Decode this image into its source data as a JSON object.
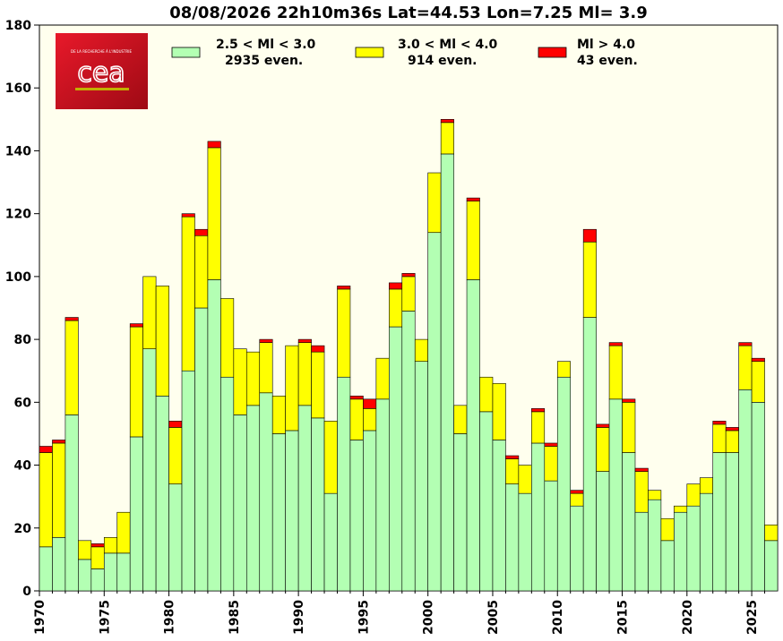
{
  "chart_data": {
    "type": "bar",
    "stacked": true,
    "title": "08/08/2026 22h10m36s Lat=44.53 Lon=7.25 Ml= 3.9",
    "xlabel": "",
    "ylabel": "",
    "ylim": [
      0,
      180
    ],
    "yticks": [
      0,
      20,
      40,
      60,
      80,
      100,
      120,
      140,
      160,
      180
    ],
    "xticks": [
      1970,
      1975,
      1980,
      1985,
      1990,
      1995,
      2000,
      2005,
      2010,
      2015,
      2020,
      2025
    ],
    "grid": false,
    "background": "#ffffee",
    "legend_position": "top",
    "years": [
      1970,
      1971,
      1972,
      1973,
      1974,
      1975,
      1976,
      1977,
      1978,
      1979,
      1980,
      1981,
      1982,
      1983,
      1984,
      1985,
      1986,
      1987,
      1988,
      1989,
      1990,
      1991,
      1992,
      1993,
      1994,
      1995,
      1996,
      1997,
      1998,
      1999,
      2000,
      2001,
      2002,
      2003,
      2004,
      2005,
      2006,
      2007,
      2008,
      2009,
      2010,
      2011,
      2012,
      2013,
      2014,
      2015,
      2016,
      2017,
      2018,
      2019,
      2020,
      2021,
      2022,
      2023,
      2024,
      2025,
      2026
    ],
    "series": [
      {
        "name": "2.5 < Ml < 3.0",
        "legend_line1": "2.5 < Ml <  3.0",
        "legend_line2": "2935 even.",
        "color": "#b3ffb3",
        "values": [
          14,
          17,
          56,
          10,
          7,
          12,
          12,
          49,
          77,
          62,
          34,
          70,
          90,
          99,
          68,
          56,
          59,
          63,
          50,
          51,
          59,
          55,
          31,
          68,
          48,
          51,
          61,
          84,
          89,
          73,
          114,
          139,
          50,
          99,
          57,
          48,
          34,
          31,
          47,
          35,
          68,
          27,
          87,
          38,
          61,
          44,
          25,
          29,
          16,
          25,
          27,
          31,
          44,
          44,
          64,
          60,
          16
        ]
      },
      {
        "name": "3.0 < Ml < 4.0",
        "legend_line1": "3.0 < Ml <  4.0",
        "legend_line2": "914 even.",
        "color": "#ffff00",
        "values": [
          30,
          30,
          30,
          6,
          7,
          5,
          13,
          35,
          23,
          35,
          18,
          49,
          23,
          42,
          25,
          21,
          17,
          16,
          12,
          27,
          20,
          21,
          23,
          28,
          13,
          7,
          13,
          12,
          11,
          7,
          19,
          10,
          9,
          25,
          11,
          18,
          8,
          9,
          10,
          11,
          5,
          4,
          24,
          14,
          17,
          16,
          13,
          3,
          7,
          2,
          7,
          5,
          9,
          7,
          14,
          13,
          5
        ]
      },
      {
        "name": "Ml > 4.0",
        "legend_line1": "Ml >  4.0",
        "legend_line2": "43 even.",
        "color": "#ff0000",
        "values": [
          2,
          1,
          1,
          0,
          1,
          0,
          0,
          1,
          0,
          0,
          2,
          1,
          2,
          2,
          0,
          0,
          0,
          1,
          0,
          0,
          1,
          2,
          0,
          1,
          1,
          3,
          0,
          2,
          1,
          0,
          0,
          1,
          0,
          1,
          0,
          0,
          1,
          0,
          1,
          1,
          0,
          1,
          4,
          1,
          1,
          1,
          1,
          0,
          0,
          0,
          0,
          0,
          1,
          1,
          1,
          1,
          0
        ]
      }
    ]
  },
  "logo": {
    "text": "cea",
    "tagline": "DE LA RECHERCHE À L'INDUSTRIE",
    "color": "#d40f1e"
  }
}
